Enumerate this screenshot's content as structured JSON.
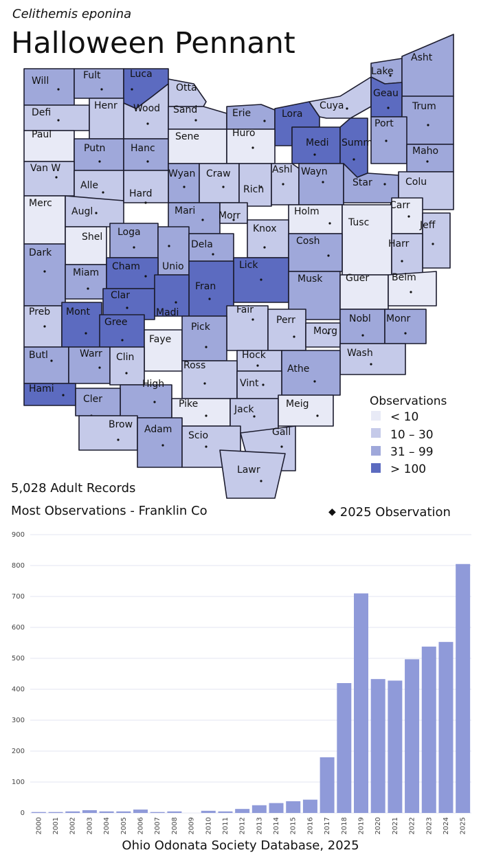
{
  "species_name": "Celithemis eponina",
  "common_name": "Halloween Pennant",
  "summary": {
    "records": "5,028 Adult Records",
    "most": "Most Observations - Franklin Co"
  },
  "observation_note": "2025  Observation",
  "source": "Ohio Odonata Society Database, 2025",
  "legend": {
    "title": "Observations",
    "items": [
      {
        "label": "< 10",
        "color": "#e8eaf6"
      },
      {
        "label": "10 – 30",
        "color": "#c5cae9"
      },
      {
        "label": "31 – 99",
        "color": "#9fa8da"
      },
      {
        "label": "> 100",
        "color": "#5c6bc0"
      }
    ]
  },
  "counties": [
    {
      "name": "Will",
      "cls": 2,
      "dot": true
    },
    {
      "name": "Fult",
      "cls": 2,
      "dot": true
    },
    {
      "name": "Luca",
      "cls": 3,
      "dot": true
    },
    {
      "name": "Otta",
      "cls": 1,
      "dot": false
    },
    {
      "name": "Lake",
      "cls": 2,
      "dot": true
    },
    {
      "name": "Asht",
      "cls": 2,
      "dot": false
    },
    {
      "name": "Defi",
      "cls": 1,
      "dot": true
    },
    {
      "name": "Henr",
      "cls": 1,
      "dot": false
    },
    {
      "name": "Wood",
      "cls": 1,
      "dot": true
    },
    {
      "name": "Sand",
      "cls": 1,
      "dot": true
    },
    {
      "name": "Erie",
      "cls": 2,
      "dot": true
    },
    {
      "name": "Lora",
      "cls": 3,
      "dot": true
    },
    {
      "name": "Cuya",
      "cls": 1,
      "dot": true
    },
    {
      "name": "Geau",
      "cls": 3,
      "dot": true
    },
    {
      "name": "Trum",
      "cls": 2,
      "dot": true
    },
    {
      "name": "Paul",
      "cls": 0,
      "dot": false
    },
    {
      "name": "Putn",
      "cls": 2,
      "dot": true
    },
    {
      "name": "Hanc",
      "cls": 2,
      "dot": true
    },
    {
      "name": "Sene",
      "cls": 0,
      "dot": false
    },
    {
      "name": "Huro",
      "cls": 0,
      "dot": true
    },
    {
      "name": "Medi",
      "cls": 3,
      "dot": true
    },
    {
      "name": "Summ",
      "cls": 3,
      "dot": true
    },
    {
      "name": "Port",
      "cls": 2,
      "dot": true
    },
    {
      "name": "Maho",
      "cls": 2,
      "dot": true
    },
    {
      "name": "Van W",
      "cls": 1,
      "dot": true
    },
    {
      "name": "Alle",
      "cls": 1,
      "dot": true
    },
    {
      "name": "Wyan",
      "cls": 2,
      "dot": true
    },
    {
      "name": "Craw",
      "cls": 1,
      "dot": true
    },
    {
      "name": "Rich",
      "cls": 1,
      "dot": true
    },
    {
      "name": "Ashl",
      "cls": 1,
      "dot": true
    },
    {
      "name": "Wayn",
      "cls": 2,
      "dot": true
    },
    {
      "name": "Star",
      "cls": 2,
      "dot": true
    },
    {
      "name": "Colu",
      "cls": 1,
      "dot": false
    },
    {
      "name": "Merc",
      "cls": 0,
      "dot": false
    },
    {
      "name": "Augl",
      "cls": 1,
      "dot": true
    },
    {
      "name": "Hard",
      "cls": 1,
      "dot": true
    },
    {
      "name": "Mari",
      "cls": 2,
      "dot": true
    },
    {
      "name": "Morr",
      "cls": 1,
      "dot": true
    },
    {
      "name": "Holm",
      "cls": 0,
      "dot": true
    },
    {
      "name": "Carr",
      "cls": 0,
      "dot": true
    },
    {
      "name": "Tusc",
      "cls": 0,
      "dot": false
    },
    {
      "name": "Jeff",
      "cls": 1,
      "dot": true
    },
    {
      "name": "Shel",
      "cls": 0,
      "dot": false
    },
    {
      "name": "Loga",
      "cls": 2,
      "dot": true
    },
    {
      "name": "Unio",
      "cls": 2,
      "dot": true
    },
    {
      "name": "Dela",
      "cls": 2,
      "dot": true
    },
    {
      "name": "Knox",
      "cls": 1,
      "dot": true
    },
    {
      "name": "Cosh",
      "cls": 2,
      "dot": true
    },
    {
      "name": "Harr",
      "cls": 1,
      "dot": true
    },
    {
      "name": "Dark",
      "cls": 2,
      "dot": true
    },
    {
      "name": "Miam",
      "cls": 2,
      "dot": true
    },
    {
      "name": "Cham",
      "cls": 3,
      "dot": true
    },
    {
      "name": "Lick",
      "cls": 3,
      "dot": true
    },
    {
      "name": "Fran",
      "cls": 3,
      "dot": true
    },
    {
      "name": "Musk",
      "cls": 2,
      "dot": false
    },
    {
      "name": "Guer",
      "cls": 0,
      "dot": false
    },
    {
      "name": "Belm",
      "cls": 0,
      "dot": true
    },
    {
      "name": "Clar",
      "cls": 3,
      "dot": true
    },
    {
      "name": "Madi",
      "cls": 3,
      "dot": true
    },
    {
      "name": "Fair",
      "cls": 1,
      "dot": true
    },
    {
      "name": "Perr",
      "cls": 1,
      "dot": true
    },
    {
      "name": "Nobl",
      "cls": 2,
      "dot": true
    },
    {
      "name": "Monr",
      "cls": 2,
      "dot": true
    },
    {
      "name": "Preb",
      "cls": 1,
      "dot": true
    },
    {
      "name": "Mont",
      "cls": 3,
      "dot": true
    },
    {
      "name": "Gree",
      "cls": 3,
      "dot": true
    },
    {
      "name": "Faye",
      "cls": 0,
      "dot": false
    },
    {
      "name": "Pick",
      "cls": 2,
      "dot": true
    },
    {
      "name": "Morg",
      "cls": 1,
      "dot": true
    },
    {
      "name": "Wash",
      "cls": 1,
      "dot": true
    },
    {
      "name": "Butl",
      "cls": 2,
      "dot": true
    },
    {
      "name": "Warr",
      "cls": 2,
      "dot": true
    },
    {
      "name": "Clin",
      "cls": 1,
      "dot": true
    },
    {
      "name": "Hock",
      "cls": 1,
      "dot": true
    },
    {
      "name": "Athe",
      "cls": 2,
      "dot": true
    },
    {
      "name": "Ross",
      "cls": 1,
      "dot": true
    },
    {
      "name": "Vint",
      "cls": 1,
      "dot": true
    },
    {
      "name": "Hami",
      "cls": 3,
      "dot": true
    },
    {
      "name": "High",
      "cls": 2,
      "dot": true
    },
    {
      "name": "Cler",
      "cls": 2,
      "dot": true
    },
    {
      "name": "Pike",
      "cls": 0,
      "dot": true
    },
    {
      "name": "Jack",
      "cls": 1,
      "dot": true
    },
    {
      "name": "Meig",
      "cls": 0,
      "dot": true
    },
    {
      "name": "Brow",
      "cls": 1,
      "dot": true
    },
    {
      "name": "Adam",
      "cls": 2,
      "dot": true
    },
    {
      "name": "Scio",
      "cls": 1,
      "dot": true
    },
    {
      "name": "Gall",
      "cls": 1,
      "dot": true
    },
    {
      "name": "Lawr",
      "cls": 1,
      "dot": true
    }
  ],
  "chart_data": {
    "type": "bar",
    "title": "",
    "xlabel": "",
    "ylabel": "",
    "categories": [
      "2000",
      "2001",
      "2002",
      "2003",
      "2004",
      "2005",
      "2006",
      "2007",
      "2008",
      "2009",
      "2010",
      "2011",
      "2012",
      "2013",
      "2014",
      "2015",
      "2016",
      "2017",
      "2018",
      "2019",
      "2020",
      "2021",
      "2022",
      "2023",
      "2024",
      "2025"
    ],
    "values": [
      3,
      3,
      5,
      9,
      5,
      5,
      11,
      3,
      5,
      0,
      7,
      5,
      13,
      25,
      32,
      38,
      43,
      180,
      420,
      710,
      433,
      428,
      497,
      538,
      553,
      805
    ],
    "ylim": [
      0,
      900
    ],
    "yticks": [
      0,
      100,
      200,
      300,
      400,
      500,
      600,
      700,
      800,
      900
    ],
    "grid": true,
    "bar_color": "#8f9ad9"
  }
}
